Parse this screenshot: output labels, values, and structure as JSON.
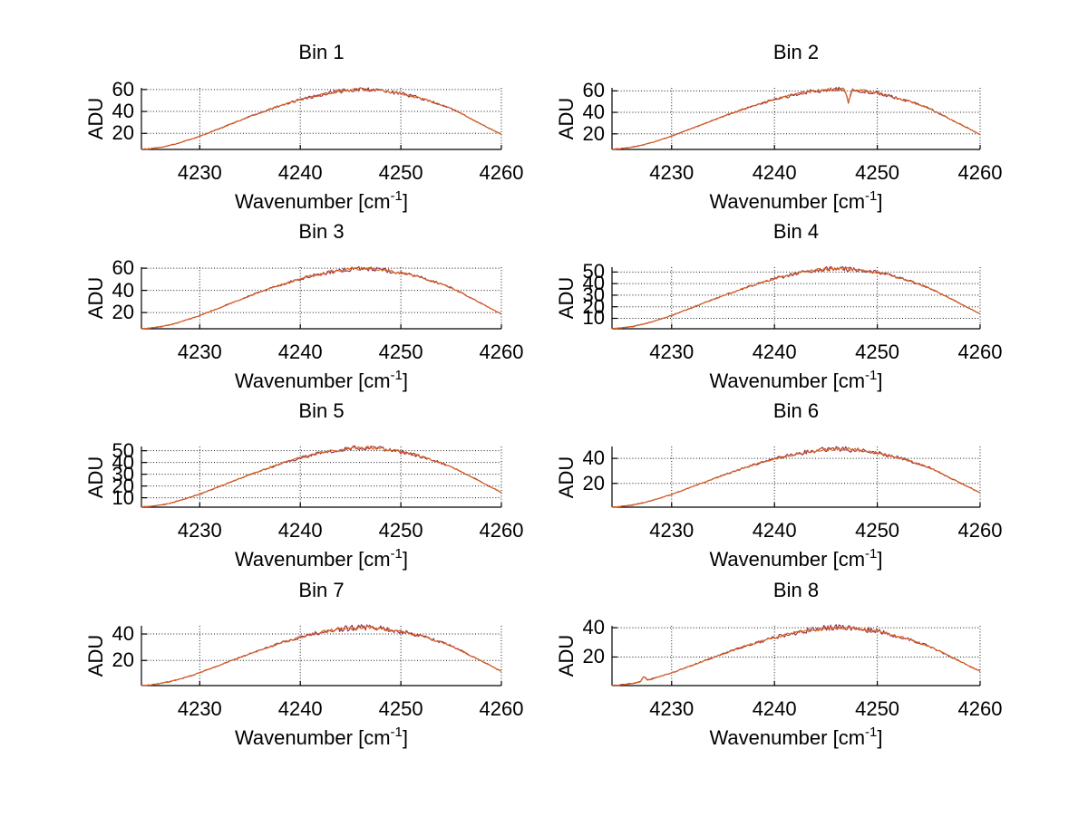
{
  "figure": {
    "background": "#ffffff",
    "axis_color": "#000000",
    "grid_color": "#1a1a1a",
    "text_color": "#000000",
    "line_color": "#d9611c",
    "line_under_color": "#8c2c4e",
    "ylabel": "ADU",
    "xlabel_prefix": "Wavenumber [cm",
    "xlabel_sup": "-1",
    "xlabel_suffix": "]"
  },
  "chart_data": [
    {
      "type": "line",
      "title": "Bin 1",
      "xlabel": "Wavenumber [cm^-1]",
      "ylabel": "ADU",
      "grid": true,
      "x_start": 4224,
      "x_step": 1,
      "xlim": [
        4224.2,
        4260
      ],
      "ylim": [
        5.4,
        61.5
      ],
      "x_ticks": [
        4230,
        4240,
        4250,
        4260
      ],
      "y_ticks": [
        20,
        40,
        60
      ],
      "values": [
        5.4,
        6.0,
        7.2,
        9.0,
        11.4,
        14.4,
        17.4,
        21.0,
        24.6,
        28.2,
        31.8,
        35.4,
        38.7,
        42.0,
        45.3,
        48.0,
        50.7,
        53.1,
        55.2,
        57.0,
        58.5,
        59.4,
        60.0,
        59.7,
        59.1,
        57.9,
        56.4,
        54.3,
        51.9,
        49.2,
        46.2,
        42.6,
        38.1,
        33.3,
        28.5,
        23.7,
        18.9
      ],
      "glitches": []
    },
    {
      "type": "line",
      "title": "Bin 2",
      "xlabel": "Wavenumber [cm^-1]",
      "ylabel": "ADU",
      "grid": true,
      "x_start": 4224,
      "x_step": 1,
      "xlim": [
        4224.2,
        4260
      ],
      "ylim": [
        5.5,
        62.8
      ],
      "x_ticks": [
        4230,
        4240,
        4250,
        4260
      ],
      "y_ticks": [
        20,
        40,
        60
      ],
      "values": [
        5.5,
        6.2,
        7.4,
        9.2,
        11.7,
        14.8,
        17.8,
        21.5,
        25.2,
        28.9,
        32.6,
        36.3,
        39.7,
        43.1,
        46.4,
        49.2,
        52.0,
        54.4,
        56.6,
        58.4,
        60.0,
        60.9,
        61.5,
        61.2,
        60.6,
        59.4,
        57.8,
        55.7,
        53.2,
        50.4,
        47.4,
        43.7,
        39.1,
        34.1,
        29.2,
        24.3,
        19.4
      ],
      "glitches": [
        {
          "x": 4247.2,
          "y": 49.0
        }
      ]
    },
    {
      "type": "line",
      "title": "Bin 3",
      "xlabel": "Wavenumber [cm^-1]",
      "ylabel": "ADU",
      "grid": true,
      "x_start": 4224,
      "x_step": 1,
      "xlim": [
        4224.2,
        4260
      ],
      "ylim": [
        5.4,
        60.9
      ],
      "x_ticks": [
        4230,
        4240,
        4250,
        4260
      ],
      "y_ticks": [
        20,
        40,
        60
      ],
      "values": [
        5.4,
        6.0,
        7.1,
        8.9,
        11.3,
        14.3,
        17.3,
        20.8,
        24.4,
        28.0,
        31.5,
        35.1,
        38.4,
        41.7,
        44.9,
        47.6,
        50.3,
        52.7,
        54.7,
        56.5,
        58.0,
        58.9,
        59.5,
        59.2,
        58.6,
        57.4,
        55.9,
        53.8,
        51.5,
        48.8,
        45.8,
        42.2,
        37.8,
        33.0,
        28.3,
        23.5,
        18.7
      ],
      "glitches": []
    },
    {
      "type": "line",
      "title": "Bin 4",
      "xlabel": "Wavenumber [cm^-1]",
      "ylabel": "ADU",
      "grid": true,
      "x_start": 4224,
      "x_step": 1,
      "xlim": [
        4224.2,
        4260
      ],
      "ylim": [
        1.0,
        54.2
      ],
      "x_ticks": [
        4230,
        4240,
        4250,
        4260
      ],
      "y_ticks": [
        10,
        20,
        30,
        40,
        50
      ],
      "values": [
        1.0,
        1.6,
        2.7,
        4.4,
        6.7,
        9.6,
        12.4,
        15.9,
        19.3,
        22.7,
        26.2,
        29.5,
        32.7,
        35.8,
        39.0,
        41.5,
        44.2,
        46.4,
        48.4,
        50.1,
        51.5,
        52.4,
        53.0,
        52.7,
        52.2,
        51.0,
        49.6,
        47.6,
        45.3,
        42.7,
        39.8,
        36.4,
        32.1,
        27.6,
        23.0,
        18.4,
        13.8
      ],
      "glitches": []
    },
    {
      "type": "line",
      "title": "Bin 5",
      "xlabel": "Wavenumber [cm^-1]",
      "ylabel": "ADU",
      "grid": true,
      "x_start": 4224,
      "x_step": 1,
      "xlim": [
        4224.2,
        4260
      ],
      "ylim": [
        2.0,
        53.6
      ],
      "x_ticks": [
        4230,
        4240,
        4250,
        4260
      ],
      "y_ticks": [
        10,
        20,
        30,
        40,
        50
      ],
      "values": [
        2.0,
        2.6,
        3.7,
        5.3,
        7.6,
        10.3,
        13.1,
        16.4,
        19.8,
        23.1,
        26.4,
        29.7,
        32.8,
        35.8,
        38.9,
        41.4,
        43.9,
        46.1,
        48.1,
        49.7,
        51.1,
        51.9,
        52.5,
        52.2,
        51.7,
        50.6,
        49.2,
        47.2,
        45.0,
        42.5,
        39.7,
        36.4,
        32.3,
        27.8,
        23.4,
        18.9,
        14.5
      ],
      "glitches": []
    },
    {
      "type": "line",
      "title": "Bin 6",
      "xlabel": "Wavenumber [cm^-1]",
      "ylabel": "ADU",
      "grid": true,
      "x_start": 4224,
      "x_step": 1,
      "xlim": [
        4224.2,
        4260
      ],
      "ylim": [
        1.0,
        49.5
      ],
      "x_ticks": [
        4230,
        4240,
        4250,
        4260
      ],
      "y_ticks": [
        20,
        40
      ],
      "values": [
        1.0,
        1.5,
        2.5,
        4.1,
        6.1,
        8.7,
        11.2,
        14.3,
        17.4,
        20.4,
        23.5,
        26.5,
        29.4,
        32.2,
        35.0,
        37.3,
        39.6,
        41.6,
        43.4,
        44.9,
        46.2,
        47.0,
        47.5,
        47.3,
        46.8,
        45.7,
        44.4,
        42.7,
        40.6,
        38.3,
        35.7,
        32.7,
        28.9,
        24.8,
        20.7,
        16.6,
        12.5
      ],
      "glitches": []
    },
    {
      "type": "line",
      "title": "Bin 7",
      "xlabel": "Wavenumber [cm^-1]",
      "ylabel": "ADU",
      "grid": true,
      "x_start": 4224,
      "x_step": 1,
      "xlim": [
        4224.2,
        4260
      ],
      "ylim": [
        1.0,
        46.2
      ],
      "x_ticks": [
        4230,
        4240,
        4250,
        4260
      ],
      "y_ticks": [
        20,
        40
      ],
      "values": [
        1.0,
        1.5,
        2.5,
        3.9,
        5.8,
        8.3,
        10.7,
        13.6,
        16.5,
        19.4,
        22.3,
        25.2,
        27.8,
        30.5,
        33.2,
        35.3,
        37.5,
        39.5,
        41.1,
        42.6,
        43.8,
        44.5,
        45.0,
        44.8,
        44.3,
        43.3,
        42.1,
        40.4,
        38.5,
        36.3,
        33.9,
        31.0,
        27.4,
        23.5,
        19.6,
        15.7,
        11.9
      ],
      "glitches": []
    },
    {
      "type": "line",
      "title": "Bin 8",
      "xlabel": "Wavenumber [cm^-1]",
      "ylabel": "ADU",
      "grid": true,
      "x_start": 4224,
      "x_step": 1,
      "xlim": [
        4224.2,
        4260
      ],
      "ylim": [
        0.5,
        41.3
      ],
      "x_ticks": [
        4230,
        4240,
        4250,
        4260
      ],
      "y_ticks": [
        20,
        40
      ],
      "values": [
        0.5,
        0.9,
        1.8,
        3.1,
        4.8,
        7.0,
        9.2,
        11.8,
        14.4,
        17.0,
        19.6,
        22.2,
        24.6,
        27.0,
        29.4,
        31.3,
        33.3,
        35.0,
        36.5,
        37.8,
        38.9,
        39.6,
        40.0,
        39.8,
        39.4,
        38.5,
        37.4,
        35.9,
        34.2,
        32.2,
        30.0,
        27.4,
        24.2,
        20.7,
        17.2,
        13.7,
        10.3
      ],
      "glitches": [
        {
          "x": 4227.3,
          "y": 6.8
        }
      ]
    }
  ]
}
